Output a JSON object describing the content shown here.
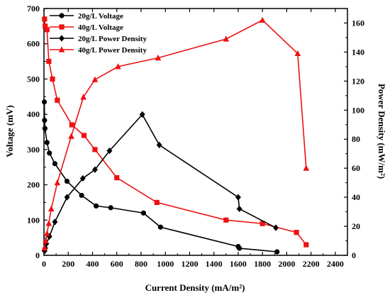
{
  "chart_data": {
    "type": "line",
    "xlabel": "Current Density (mA/m²)",
    "ylabel_left": "Voltage (mV)",
    "ylabel_right": "Power Density (mW/m²)",
    "xlim": [
      0,
      2500
    ],
    "x_ticks": [
      0,
      200,
      400,
      600,
      800,
      1000,
      1200,
      1400,
      1600,
      1800,
      2000,
      2200,
      2400
    ],
    "ylim_left": [
      0,
      700
    ],
    "y_ticks_left": [
      0,
      100,
      200,
      300,
      400,
      500,
      600,
      700
    ],
    "ylim_right": [
      0,
      170
    ],
    "y_ticks_right": [
      0,
      20,
      40,
      60,
      80,
      100,
      120,
      140,
      160
    ],
    "grid": false,
    "legend_position": "top-left",
    "series": [
      {
        "name": "20g/L Voltage",
        "axis": "left",
        "color": "#000000",
        "marker": "circle",
        "points": [
          [
            3,
            435
          ],
          [
            5,
            383
          ],
          [
            8,
            360
          ],
          [
            25,
            320
          ],
          [
            45,
            290
          ],
          [
            90,
            260
          ],
          [
            190,
            210
          ],
          [
            310,
            170
          ],
          [
            430,
            140
          ],
          [
            550,
            135
          ],
          [
            820,
            120
          ],
          [
            960,
            80
          ],
          [
            1600,
            25
          ],
          [
            1610,
            20
          ],
          [
            1920,
            10
          ]
        ]
      },
      {
        "name": "40g/L Voltage",
        "axis": "left",
        "color": "#ee1111",
        "marker": "square",
        "points": [
          [
            5,
            670
          ],
          [
            10,
            650
          ],
          [
            25,
            640
          ],
          [
            40,
            550
          ],
          [
            70,
            500
          ],
          [
            110,
            440
          ],
          [
            230,
            370
          ],
          [
            330,
            340
          ],
          [
            420,
            300
          ],
          [
            600,
            220
          ],
          [
            930,
            150
          ],
          [
            1500,
            100
          ],
          [
            1800,
            90
          ],
          [
            2080,
            65
          ],
          [
            2160,
            30
          ]
        ]
      },
      {
        "name": "20g/L Power Density",
        "axis": "right",
        "color": "#000000",
        "marker": "diamond",
        "points": [
          [
            5,
            3
          ],
          [
            10,
            5
          ],
          [
            20,
            8
          ],
          [
            45,
            13
          ],
          [
            90,
            23
          ],
          [
            190,
            40
          ],
          [
            320,
            53
          ],
          [
            420,
            59
          ],
          [
            540,
            72
          ],
          [
            810,
            97
          ],
          [
            950,
            76
          ],
          [
            1600,
            40
          ],
          [
            1610,
            32
          ],
          [
            1910,
            19
          ]
        ]
      },
      {
        "name": "40g/L Power Density",
        "axis": "right",
        "color": "#ee1111",
        "marker": "triangle",
        "points": [
          [
            5,
            5
          ],
          [
            15,
            10
          ],
          [
            25,
            15
          ],
          [
            40,
            22
          ],
          [
            60,
            32
          ],
          [
            110,
            50
          ],
          [
            225,
            82
          ],
          [
            325,
            109
          ],
          [
            420,
            121
          ],
          [
            610,
            130
          ],
          [
            940,
            136
          ],
          [
            1500,
            149
          ],
          [
            1800,
            162
          ],
          [
            2090,
            139
          ],
          [
            2160,
            60
          ]
        ]
      }
    ]
  }
}
